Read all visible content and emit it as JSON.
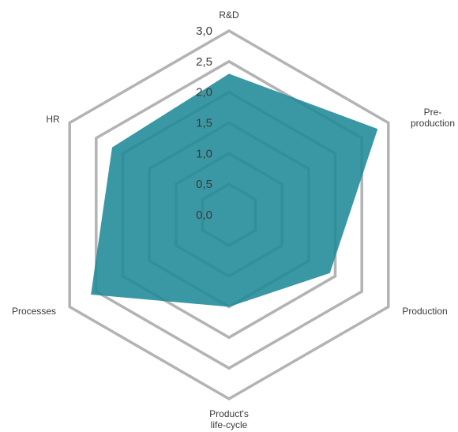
{
  "chart_data": {
    "type": "radar",
    "categories": [
      "R&D",
      "Pre-\nproduction",
      "Production",
      "Product's\nlife-cycle",
      "Processes",
      "HR"
    ],
    "series": [
      {
        "values": [
          2.3,
          2.8,
          1.9,
          1.5,
          2.6,
          2.2
        ],
        "color": "#1f8a99"
      }
    ],
    "rlim": [
      0,
      3
    ],
    "rticks": [
      "0,0",
      "0,5",
      "1,0",
      "1,5",
      "2,0",
      "2,5",
      "3,0"
    ],
    "grid": true,
    "colors": {
      "grid": "#b3b3b3",
      "fill": "#1f8a99",
      "text": "#3a3a3a"
    }
  }
}
